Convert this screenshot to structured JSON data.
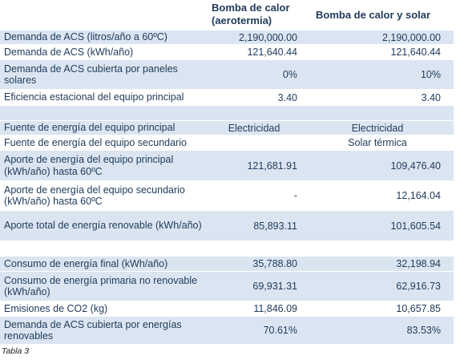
{
  "header": {
    "col1": "Bomba de calor\n(aerotermia)",
    "col1_line1": "Bomba de calor",
    "col1_line2": "(aerotermia)",
    "col2": "Bomba de calor y solar"
  },
  "rows": [
    {
      "label": "Demanda de ACS (litros/año a 60ºC)",
      "v1": "2,190,000.00",
      "v2": "2,190,000.00",
      "bg": "band"
    },
    {
      "label": "Demanda de ACS (kWh/año)",
      "v1": "121,640.44",
      "v2": "121,640.44",
      "bg": "white"
    },
    {
      "label": "Demanda de ACS cubierta por paneles solares",
      "v1": "0%",
      "v2": "10%",
      "bg": "band"
    },
    {
      "label": "Eficiencia estacional del equipo principal",
      "v1": "3.40",
      "v2": "3.40",
      "bg": "white"
    },
    {
      "label": "",
      "v1": "",
      "v2": "",
      "bg": "band"
    },
    {
      "label": "Fuente de energía del equipo principal",
      "v1": "Electricidad",
      "v2": "Electricidad",
      "bg": "band",
      "center": true
    },
    {
      "label": "Fuente de energía del equipo secundario",
      "v1": "",
      "v2": "Solar térmica",
      "bg": "white",
      "center": true
    },
    {
      "label": "Aporte de energía del equipo principal (kWh/año) hasta 60ºC",
      "v1": "121,681.91",
      "v2": "109,476.40",
      "bg": "band"
    },
    {
      "label": "Aporte de energía del equipo secundario (kWh/año) hasta 60ºC",
      "v1": "-",
      "v2": "12,164.04",
      "bg": "white"
    },
    {
      "label": "Aporte total de energía renovable (kWh/año)",
      "v1": "85,893.11",
      "v2": "101,605.54",
      "bg": "band"
    },
    {
      "label": "",
      "v1": "",
      "v2": "",
      "bg": "white"
    },
    {
      "label": "Consumo de energía final (kWh/año)",
      "v1": "35,788.80",
      "v2": "32,198.94",
      "bg": "band"
    },
    {
      "label": "Consumo de energía primaria no renovable (kWh/año)",
      "v1": "69,931.31",
      "v2": "62,916.73",
      "bg": "band"
    },
    {
      "label": "Emisiones de CO2 (kg)",
      "v1": "11,846.09",
      "v2": "10,657.85",
      "bg": "white"
    },
    {
      "label": "Demanda de ACS cubierta por energías renovables",
      "v1": "70.61%",
      "v2": "83.53%",
      "bg": "band"
    }
  ],
  "caption": "Tabla 3"
}
